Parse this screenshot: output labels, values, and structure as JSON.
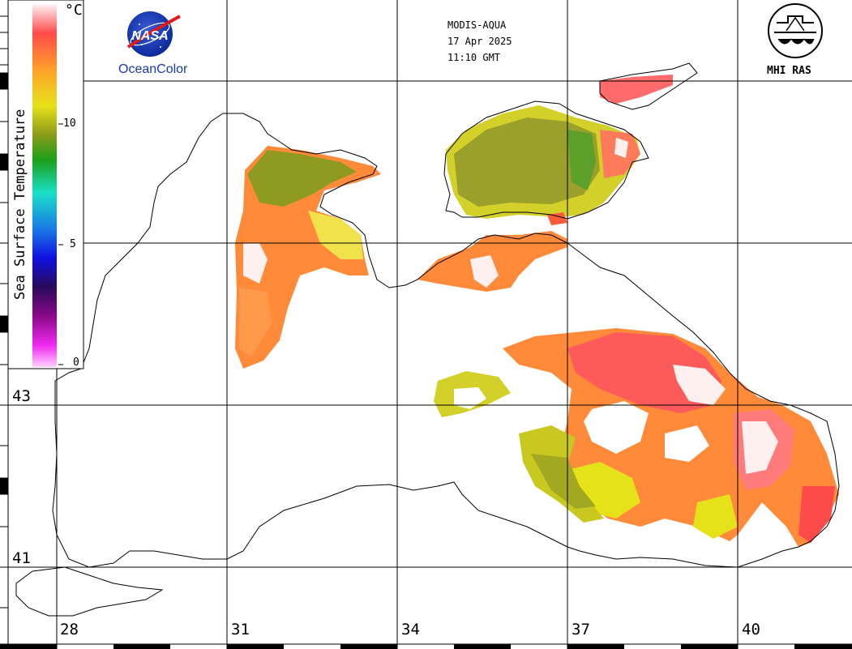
{
  "header": {
    "sensor": "MODIS-AQUA",
    "date": "17 Apr 2025",
    "time": "11:10 GMT"
  },
  "logos": {
    "nasa_text": "NASA",
    "oceancolor": "OceanColor",
    "mhi": "MHI RAS"
  },
  "legend": {
    "title": "Sea Surface Temperature",
    "unit": "°C",
    "ticks": [
      "10",
      "5",
      "0"
    ],
    "colors": [
      "#fff0f8",
      "#ff3a3a",
      "#ff9a2a",
      "#e6e61a",
      "#8a9a1a",
      "#1aa01a",
      "#1ae6c8",
      "#1a8ae6",
      "#0a0ae6",
      "#2a0a6a",
      "#8a0a8a",
      "#e61ae6",
      "#ffc8ff"
    ]
  },
  "axes": {
    "lon_labels": [
      "28",
      "31",
      "34",
      "37",
      "40"
    ],
    "lat_labels": [
      "43",
      "41"
    ]
  }
}
